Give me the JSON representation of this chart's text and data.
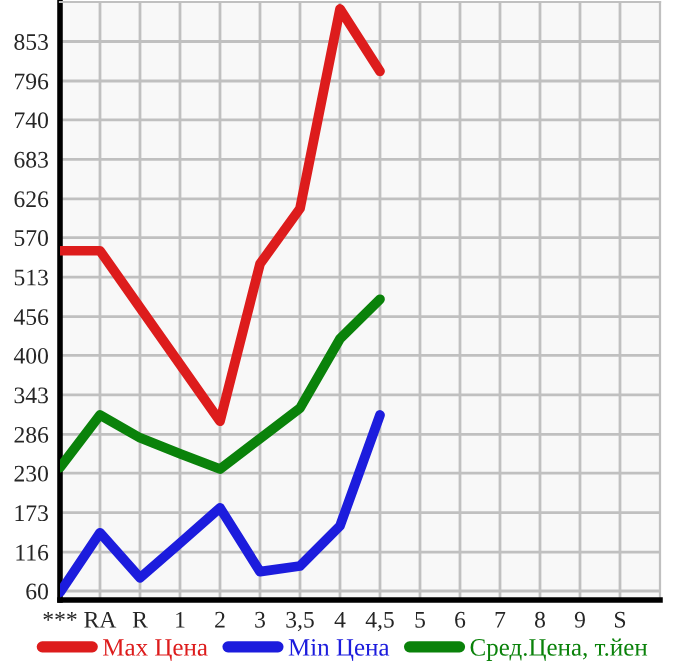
{
  "chart_data": {
    "type": "line",
    "categories": [
      "***",
      "RA",
      "R",
      "1",
      "2",
      "3",
      "3,5",
      "4",
      "4,5",
      "5",
      "6",
      "7",
      "8",
      "9",
      "S"
    ],
    "series": [
      {
        "name": "Max Цена",
        "color": "#dd1c1c",
        "values": [
          551,
          551,
          469,
          387,
          305,
          532,
          612,
          900,
          810,
          null,
          null,
          null,
          null,
          null,
          null
        ]
      },
      {
        "name": "Min Цена",
        "color": "#1c1cdd",
        "values": [
          58,
          144,
          79,
          129,
          180,
          88,
          96,
          154,
          314,
          null,
          null,
          null,
          null,
          null,
          null
        ]
      },
      {
        "name": "Сред.Цена, т.йен",
        "color": "#0a820a",
        "values": [
          238,
          314,
          281,
          258,
          236,
          280,
          324,
          424,
          481,
          null,
          null,
          null,
          null,
          null,
          null
        ]
      }
    ],
    "ylim": [
      47,
      910
    ],
    "yticks": [
      60,
      116,
      173,
      230,
      286,
      343,
      400,
      456,
      513,
      570,
      626,
      683,
      740,
      796,
      853
    ],
    "grid": true,
    "legend": "bottom",
    "marker": "none",
    "line_style": "solid"
  }
}
